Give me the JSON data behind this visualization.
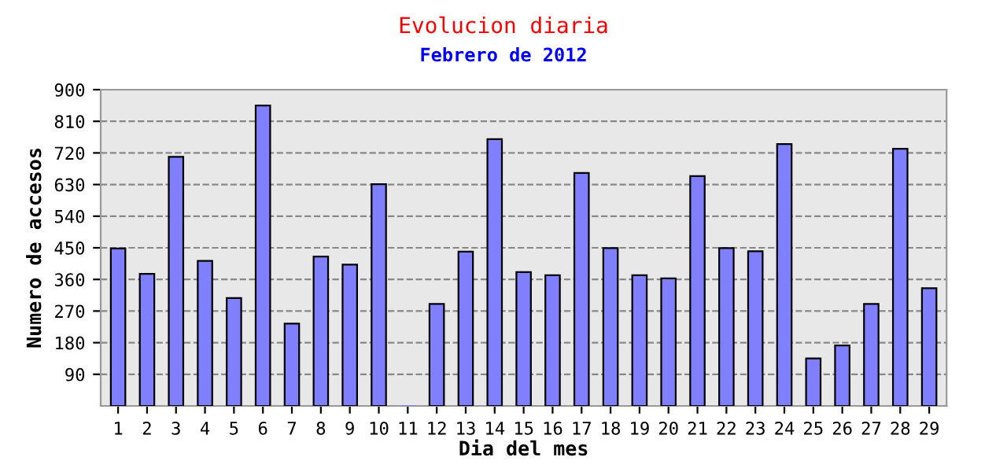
{
  "chart_data": {
    "type": "bar",
    "title": "Evolucion diaria",
    "subtitle": "Febrero de 2012",
    "xlabel": "Dia del mes",
    "ylabel": "Numero de accesos",
    "categories": [
      "1",
      "2",
      "3",
      "4",
      "5",
      "6",
      "7",
      "8",
      "9",
      "10",
      "11",
      "12",
      "13",
      "14",
      "15",
      "16",
      "17",
      "18",
      "19",
      "20",
      "21",
      "22",
      "23",
      "24",
      "25",
      "26",
      "27",
      "28",
      "29"
    ],
    "values": [
      448,
      376,
      709,
      413,
      307,
      855,
      234,
      425,
      402,
      631,
      0,
      290,
      439,
      759,
      381,
      372,
      663,
      449,
      372,
      363,
      654,
      449,
      440,
      745,
      135,
      172,
      290,
      732,
      335
    ],
    "color": "#8080ff",
    "ylim": [
      0,
      900
    ],
    "yticks": [
      90,
      180,
      270,
      360,
      450,
      540,
      630,
      720,
      810,
      900
    ],
    "grid": "y",
    "line_style": "dashed"
  }
}
